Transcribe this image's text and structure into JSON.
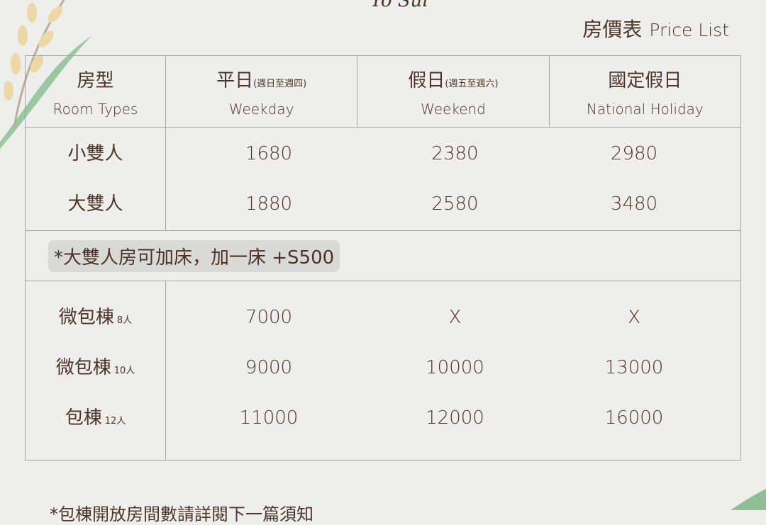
{
  "logo": "Yo Sui",
  "title": {
    "zh": "房價表",
    "en": "Price List"
  },
  "header": {
    "room_types": {
      "zh": "房型",
      "en": "Room Types"
    },
    "weekday": {
      "zh": "平日",
      "sub": "(週日至週四)",
      "en": "Weekday"
    },
    "weekend": {
      "zh": "假日",
      "sub": "(週五至週六)",
      "en": "Weekend"
    },
    "holiday": {
      "zh": "國定假日",
      "en": "National Holiday"
    }
  },
  "rooms": [
    {
      "name": "小雙人",
      "weekday": "1680",
      "weekend": "2380",
      "holiday": "2980"
    },
    {
      "name": "大雙人",
      "weekday": "1880",
      "weekend": "2580",
      "holiday": "3480"
    }
  ],
  "note": "*大雙人房可加床，加一床 +S500",
  "buildings": [
    {
      "name": "微包棟",
      "cap": "8人",
      "weekday": "7000",
      "weekend": "X",
      "holiday": "X"
    },
    {
      "name": "微包棟",
      "cap": "10人",
      "weekday": "9000",
      "weekend": "10000",
      "holiday": "13000"
    },
    {
      "name": "包棟",
      "cap": "12人",
      "weekday": "11000",
      "weekend": "12000",
      "holiday": "16000"
    }
  ],
  "footer_note": "*包棟開放房間數請詳閱下一篇須知"
}
